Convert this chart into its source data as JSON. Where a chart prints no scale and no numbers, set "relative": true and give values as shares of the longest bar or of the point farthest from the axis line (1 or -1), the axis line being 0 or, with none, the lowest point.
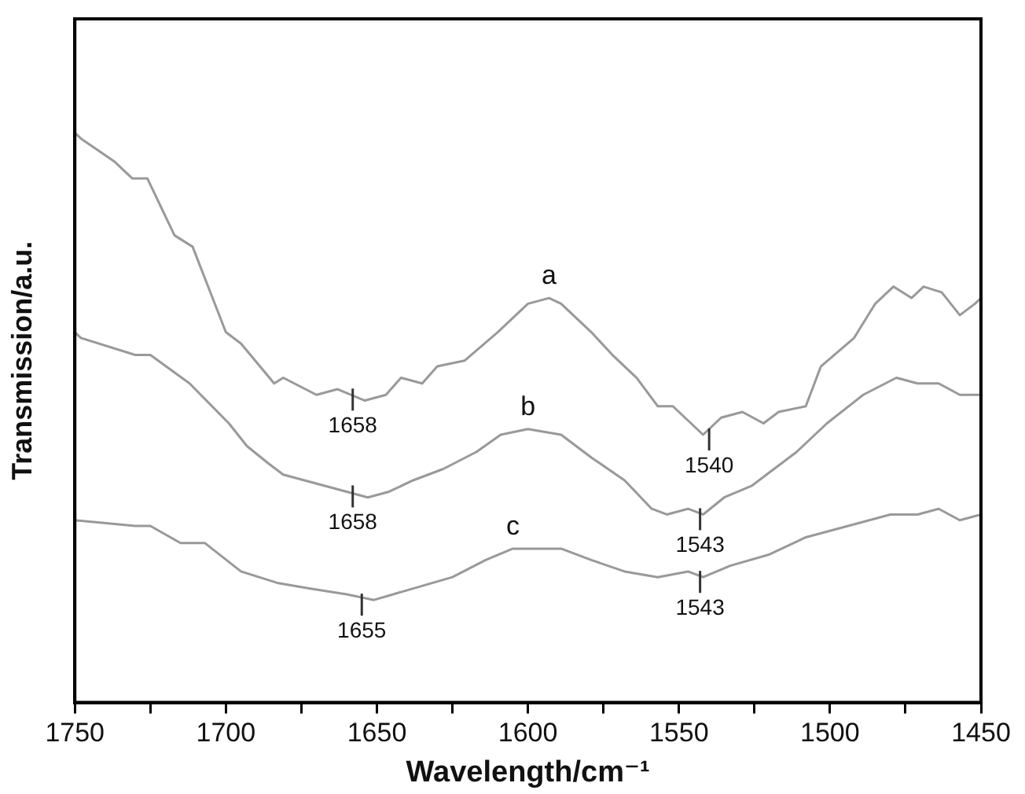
{
  "chart_data": {
    "type": "line",
    "relative": true,
    "xlabel": "Wavelength/cm⁻¹",
    "ylabel": "Transmission/a.u.",
    "xlim": [
      1750,
      1450
    ],
    "xticks": [
      1750,
      {
        "value": 1725,
        "label": null
      },
      1700,
      {
        "value": 1675,
        "label": null
      },
      1650,
      {
        "value": 1625,
        "label": null
      },
      1600,
      {
        "value": 1575,
        "label": null
      },
      1550,
      {
        "value": 1525,
        "label": null
      },
      1500,
      {
        "value": 1475,
        "label": null
      },
      1450
    ],
    "series": [
      {
        "name": "a",
        "color": "#999999",
        "x": [
          1750,
          1748,
          1737,
          1731,
          1726,
          1717,
          1711,
          1700,
          1695,
          1684,
          1681,
          1670,
          1663,
          1654,
          1647,
          1642,
          1635,
          1630,
          1621,
          1610,
          1600,
          1593,
          1589,
          1579,
          1572,
          1564,
          1557,
          1552,
          1542,
          1536,
          1529,
          1522,
          1517,
          1508,
          1503,
          1492,
          1485,
          1479,
          1473,
          1469,
          1463,
          1457,
          1452,
          1450
        ],
        "values": [
          1.0,
          0.99,
          0.95,
          0.92,
          0.92,
          0.82,
          0.8,
          0.65,
          0.63,
          0.56,
          0.57,
          0.54,
          0.55,
          0.53,
          0.54,
          0.57,
          0.56,
          0.59,
          0.6,
          0.65,
          0.7,
          0.71,
          0.7,
          0.65,
          0.61,
          0.57,
          0.52,
          0.52,
          0.47,
          0.5,
          0.51,
          0.49,
          0.51,
          0.52,
          0.59,
          0.64,
          0.7,
          0.73,
          0.71,
          0.73,
          0.72,
          0.68,
          0.7,
          0.71
        ]
      },
      {
        "name": "b",
        "color": "#999999",
        "x": [
          1750,
          1748,
          1730,
          1725,
          1712,
          1699,
          1693,
          1686,
          1681,
          1674,
          1667,
          1660,
          1653,
          1646,
          1638,
          1628,
          1617,
          1609,
          1600,
          1589,
          1579,
          1568,
          1559,
          1554,
          1547,
          1542,
          1535,
          1526,
          1511,
          1501,
          1489,
          1478,
          1471,
          1464,
          1457,
          1450
        ],
        "values": [
          0.65,
          0.64,
          0.61,
          0.61,
          0.56,
          0.49,
          0.45,
          0.42,
          0.4,
          0.39,
          0.38,
          0.37,
          0.36,
          0.37,
          0.39,
          0.41,
          0.44,
          0.47,
          0.48,
          0.47,
          0.43,
          0.39,
          0.34,
          0.33,
          0.34,
          0.33,
          0.36,
          0.38,
          0.44,
          0.49,
          0.54,
          0.57,
          0.56,
          0.56,
          0.54,
          0.54
        ]
      },
      {
        "name": "c",
        "color": "#999999",
        "x": [
          1750,
          1730,
          1725,
          1715,
          1707,
          1695,
          1683,
          1672,
          1660,
          1651,
          1638,
          1625,
          1614,
          1605,
          1597,
          1589,
          1579,
          1568,
          1557,
          1547,
          1542,
          1533,
          1520,
          1508,
          1494,
          1480,
          1471,
          1464,
          1457,
          1450
        ],
        "values": [
          0.32,
          0.31,
          0.31,
          0.28,
          0.28,
          0.23,
          0.21,
          0.2,
          0.19,
          0.18,
          0.2,
          0.22,
          0.25,
          0.27,
          0.27,
          0.27,
          0.25,
          0.23,
          0.22,
          0.23,
          0.22,
          0.24,
          0.26,
          0.29,
          0.31,
          0.33,
          0.33,
          0.34,
          0.32,
          0.33
        ]
      }
    ],
    "annotations": [
      {
        "text": "1658",
        "x": 1658,
        "y": 0.54
      },
      {
        "text": "1540",
        "x": 1540,
        "y": 0.47
      },
      {
        "text": "1658",
        "x": 1658,
        "y": 0.37
      },
      {
        "text": "1543",
        "x": 1543,
        "y": 0.33
      },
      {
        "text": "1655",
        "x": 1655,
        "y": 0.18
      },
      {
        "text": "1543",
        "x": 1543,
        "y": 0.22
      }
    ]
  }
}
